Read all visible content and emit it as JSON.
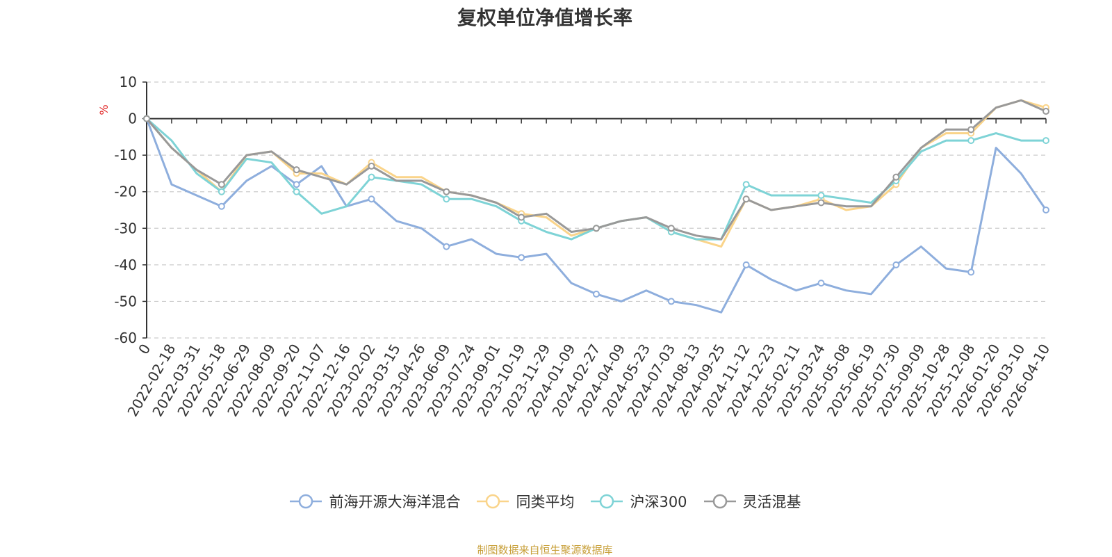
{
  "chart_data": {
    "type": "line",
    "title": "复权单位净值增长率",
    "ylabel": "%",
    "xlabel": "",
    "ylim": [
      -60,
      10
    ],
    "yticks": [
      10,
      0,
      -10,
      -20,
      -30,
      -40,
      -50,
      -60
    ],
    "grid": true,
    "legend_position": "bottom-center",
    "categories": [
      "0",
      "2022-02-18",
      "2022-03-31",
      "2022-05-18",
      "2022-06-29",
      "2022-08-09",
      "2022-09-20",
      "2022-11-07",
      "2022-12-16",
      "2023-02-02",
      "2023-03-15",
      "2023-04-26",
      "2023-06-09",
      "2023-07-24",
      "2023-09-01",
      "2023-10-19",
      "2023-11-29",
      "2024-01-09",
      "2024-02-27",
      "2024-04-09",
      "2024-05-23",
      "2024-07-03",
      "2024-08-13",
      "2024-09-25",
      "2024-11-12",
      "2024-12-23",
      "2025-02-11",
      "2025-03-24",
      "2025-05-08",
      "2025-06-19",
      "2025-07-30",
      "2025-09-09",
      "2025-10-28",
      "2025-12-08",
      "2026-01-20",
      "2026-03-10",
      "2026-04-10"
    ],
    "series": [
      {
        "name": "前海开源大海洋混合",
        "color": "#8eaedd",
        "values": [
          0,
          -18,
          -21,
          -24,
          -17,
          -13,
          -18,
          -13,
          -24,
          -22,
          -28,
          -30,
          -35,
          -33,
          -37,
          -38,
          -37,
          -45,
          -48,
          -50,
          -47,
          -50,
          -51,
          -53,
          -40,
          -44,
          -47,
          -45,
          -47,
          -48,
          -40,
          -35,
          -41,
          -42,
          -8,
          -15,
          -25
        ]
      },
      {
        "name": "同类平均",
        "color": "#fad48a",
        "values": [
          0,
          -8,
          -14,
          -20,
          -10,
          -9,
          -15,
          -15,
          -18,
          -12,
          -16,
          -16,
          -20,
          -21,
          -23,
          -26,
          -27,
          -32,
          -30,
          -28,
          -27,
          -31,
          -33,
          -35,
          -22,
          -25,
          -24,
          -22,
          -25,
          -24,
          -18,
          -8,
          -4,
          -4,
          3,
          5,
          3
        ]
      },
      {
        "name": "沪深300",
        "color": "#7ed3d6",
        "values": [
          0,
          -6,
          -15,
          -20,
          -11,
          -12,
          -20,
          -26,
          -24,
          -16,
          -17,
          -18,
          -22,
          -22,
          -24,
          -28,
          -31,
          -33,
          -30,
          -28,
          -27,
          -31,
          -33,
          -33,
          -18,
          -21,
          -21,
          -21,
          -22,
          -23,
          -17,
          -9,
          -6,
          -6,
          -4,
          -6,
          -6
        ]
      },
      {
        "name": "灵活混基",
        "color": "#999999",
        "values": [
          0,
          -8,
          -14,
          -18,
          -10,
          -9,
          -14,
          -16,
          -18,
          -13,
          -17,
          -17,
          -20,
          -21,
          -23,
          -27,
          -26,
          -31,
          -30,
          -28,
          -27,
          -30,
          -32,
          -33,
          -22,
          -25,
          -24,
          -23,
          -24,
          -24,
          -16,
          -8,
          -3,
          -3,
          3,
          5,
          2
        ]
      }
    ]
  },
  "source_text": "制图数据来自恒生聚源数据库"
}
